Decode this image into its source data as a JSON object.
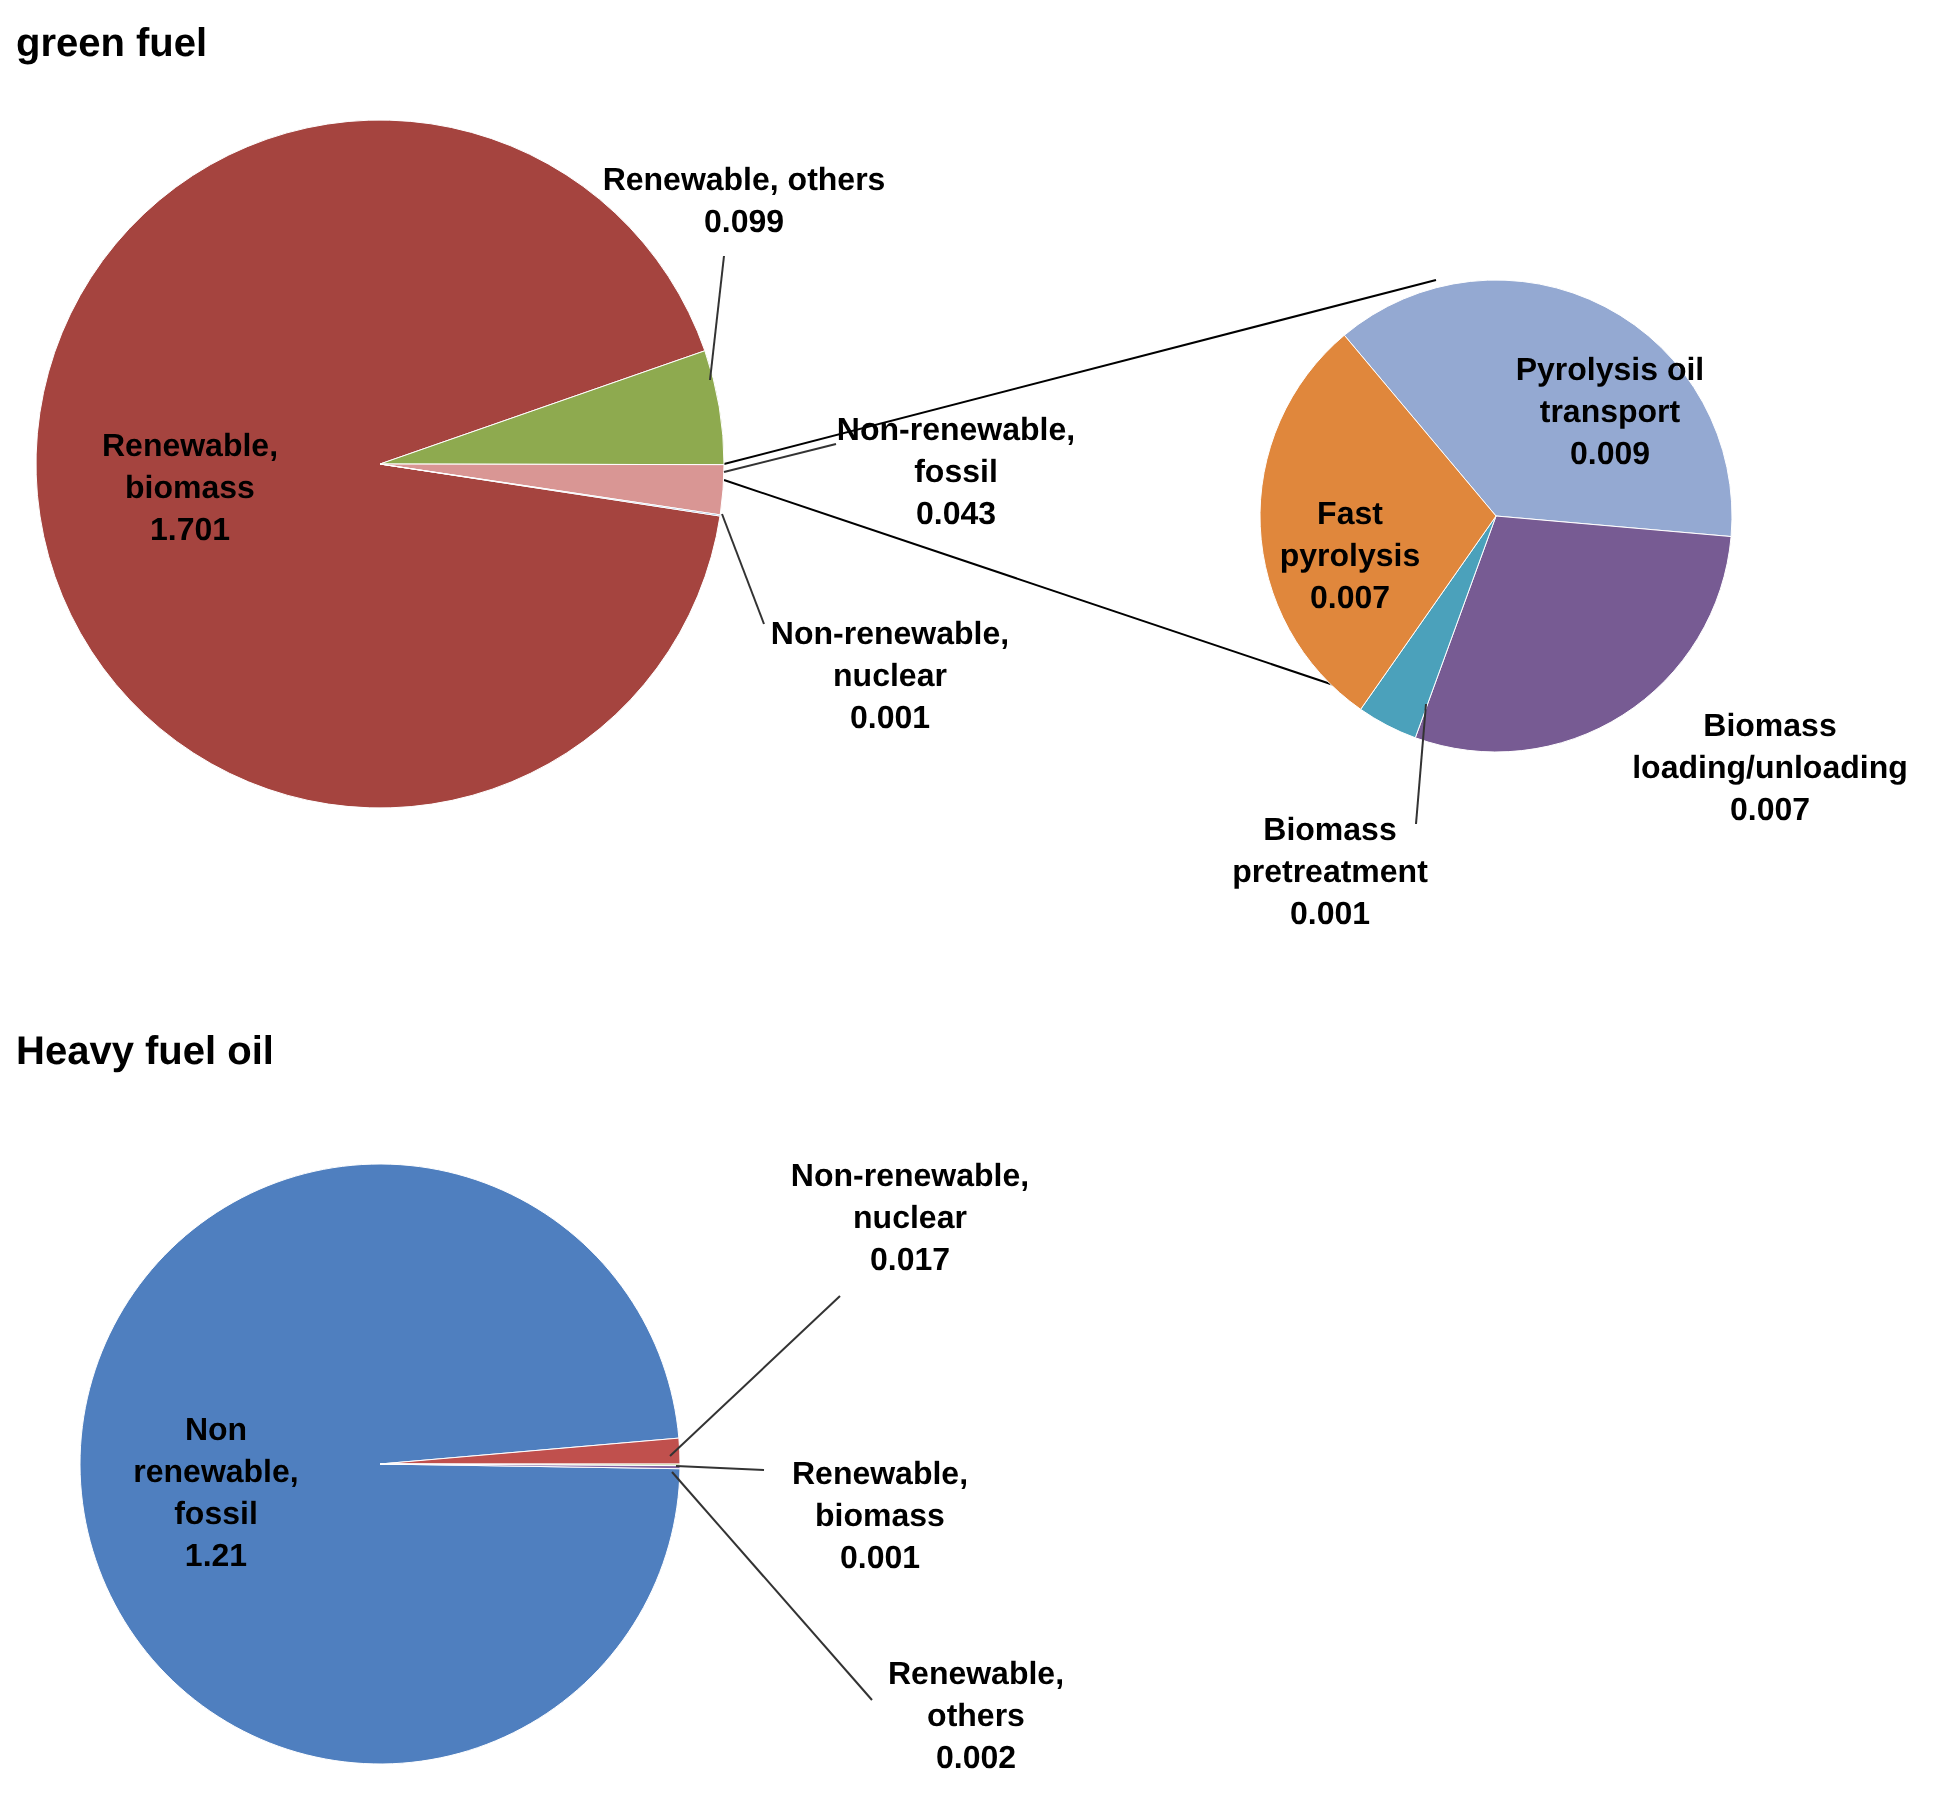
{
  "chart_data": [
    {
      "type": "pie",
      "title": "green fuel",
      "categories": [
        "Renewable, biomass",
        "Renewable, others",
        "Non-renewable, fossil",
        "Non-renewable, nuclear"
      ],
      "values": [
        1.701,
        0.099,
        0.043,
        0.001
      ],
      "colors": [
        "#a5443f",
        "#8eaa4f",
        "#d99694",
        "#4f81bd"
      ],
      "data_labels": true
    },
    {
      "type": "pie",
      "categories": [
        "Pyrolysis oil transport",
        "Biomass loading/unloading",
        "Biomass pretreatment",
        "Fast pyrolysis"
      ],
      "values": [
        0.009,
        0.007,
        0.001,
        0.007
      ],
      "colors": [
        "#94a9d2",
        "#775b93",
        "#4ba1bb",
        "#e0873c"
      ],
      "data_labels": true
    },
    {
      "type": "pie",
      "title": "Heavy fuel oil",
      "categories": [
        "Non renewable, fossil",
        "Non-renewable, nuclear",
        "Renewable, biomass",
        "Renewable, others"
      ],
      "values": [
        1.21,
        0.017,
        0.001,
        0.002
      ],
      "colors": [
        "#4f7fbf",
        "#c0504d",
        "#9bbb59",
        "#8064a2"
      ],
      "data_labels": true
    }
  ]
}
